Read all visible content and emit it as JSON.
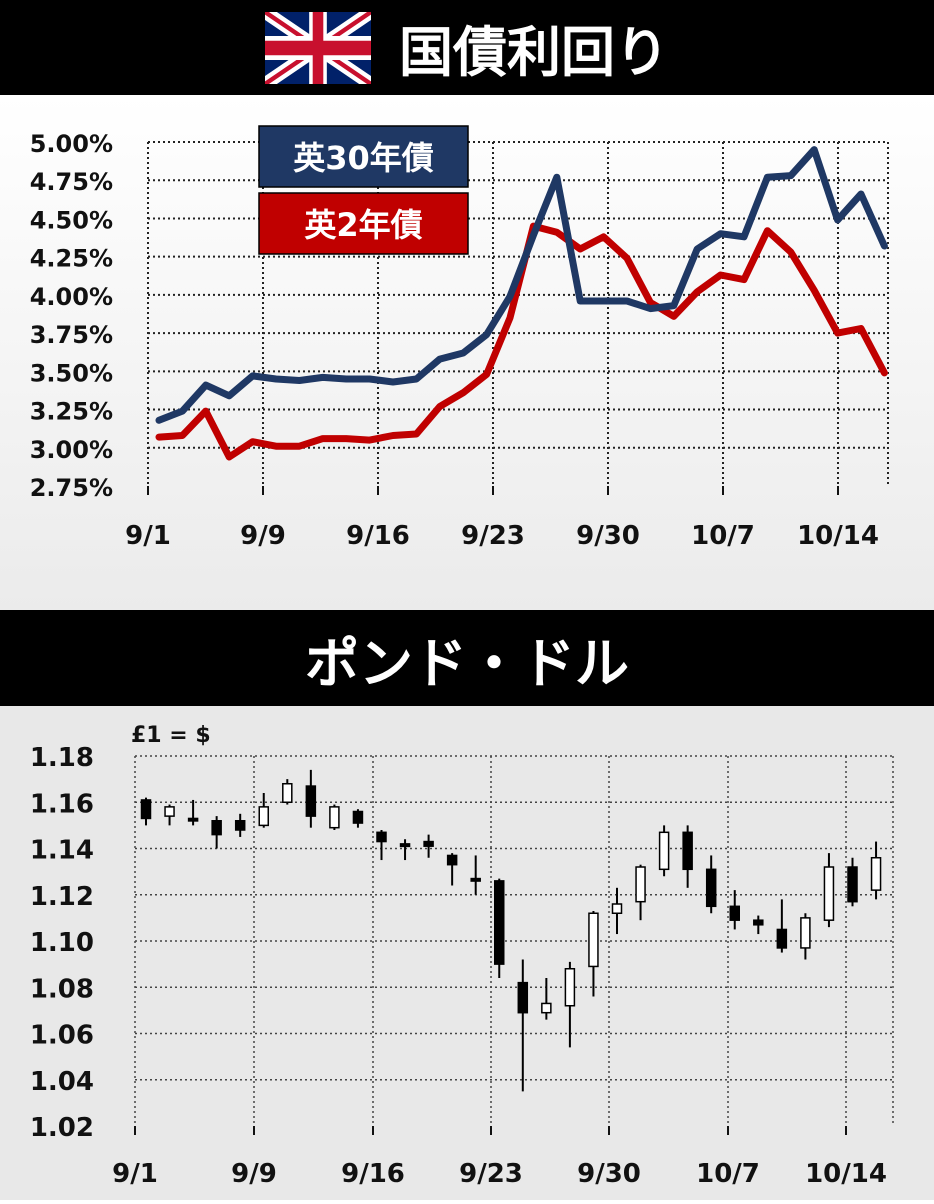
{
  "header1": {
    "title": "国債利回り",
    "flag_icon": "uk-flag-icon"
  },
  "header2": {
    "title": "ポンド・ドル"
  },
  "colors": {
    "series30": "#1f3864",
    "series2": "#c00000"
  },
  "chart_data": [
    {
      "type": "line",
      "ylim": [
        2.75,
        5.0
      ],
      "y_ticks": [
        "2.75%",
        "3.00%",
        "3.25%",
        "3.50%",
        "3.75%",
        "4.00%",
        "4.25%",
        "4.50%",
        "4.75%",
        "5.00%"
      ],
      "x_tick_labels": [
        "9/1",
        "9/9",
        "9/16",
        "9/23",
        "9/30",
        "10/7",
        "10/14"
      ],
      "legend_placement": "top-left",
      "series": [
        {
          "name": "英30年債",
          "values": [
            3.18,
            3.24,
            3.41,
            3.34,
            3.47,
            3.45,
            3.44,
            3.46,
            3.45,
            3.45,
            3.43,
            3.45,
            3.58,
            3.62,
            3.74,
            3.99,
            4.39,
            4.77,
            3.96,
            3.96,
            3.96,
            3.91,
            3.93,
            4.3,
            4.4,
            4.38,
            4.77,
            4.78,
            4.95,
            4.49,
            4.66,
            4.32
          ]
        },
        {
          "name": "英2年債",
          "values": [
            3.07,
            3.08,
            3.24,
            2.94,
            3.04,
            3.01,
            3.01,
            3.06,
            3.06,
            3.05,
            3.08,
            3.09,
            3.27,
            3.36,
            3.48,
            3.85,
            4.45,
            4.41,
            4.3,
            4.38,
            4.24,
            3.95,
            3.86,
            4.02,
            4.13,
            4.1,
            4.42,
            4.28,
            4.03,
            3.75,
            3.78,
            3.49
          ]
        }
      ]
    },
    {
      "type": "candlestick",
      "unit_label": "£1 = $",
      "ylim": [
        1.02,
        1.18
      ],
      "y_ticks": [
        "1.02",
        "1.04",
        "1.06",
        "1.08",
        "1.10",
        "1.12",
        "1.14",
        "1.16",
        "1.18"
      ],
      "x_tick_labels": [
        "9/1",
        "9/9",
        "9/16",
        "9/23",
        "9/30",
        "10/7",
        "10/14"
      ],
      "candles": [
        {
          "open": 1.161,
          "close": 1.153,
          "high": 1.162,
          "low": 1.15
        },
        {
          "open": 1.154,
          "close": 1.158,
          "high": 1.159,
          "low": 1.15
        },
        {
          "open": 1.153,
          "close": 1.152,
          "high": 1.161,
          "low": 1.15
        },
        {
          "open": 1.152,
          "close": 1.146,
          "high": 1.154,
          "low": 1.14
        },
        {
          "open": 1.152,
          "close": 1.148,
          "high": 1.155,
          "low": 1.145
        },
        {
          "open": 1.15,
          "close": 1.158,
          "high": 1.164,
          "low": 1.149
        },
        {
          "open": 1.16,
          "close": 1.168,
          "high": 1.17,
          "low": 1.159
        },
        {
          "open": 1.167,
          "close": 1.154,
          "high": 1.174,
          "low": 1.149
        },
        {
          "open": 1.149,
          "close": 1.158,
          "high": 1.159,
          "low": 1.148
        },
        {
          "open": 1.156,
          "close": 1.151,
          "high": 1.157,
          "low": 1.149
        },
        {
          "open": 1.147,
          "close": 1.143,
          "high": 1.148,
          "low": 1.135
        },
        {
          "open": 1.142,
          "close": 1.141,
          "high": 1.144,
          "low": 1.135
        },
        {
          "open": 1.143,
          "close": 1.141,
          "high": 1.146,
          "low": 1.136
        },
        {
          "open": 1.137,
          "close": 1.133,
          "high": 1.138,
          "low": 1.124
        },
        {
          "open": 1.127,
          "close": 1.126,
          "high": 1.137,
          "low": 1.12
        },
        {
          "open": 1.126,
          "close": 1.09,
          "high": 1.127,
          "low": 1.084
        },
        {
          "open": 1.082,
          "close": 1.069,
          "high": 1.092,
          "low": 1.035
        },
        {
          "open": 1.069,
          "close": 1.073,
          "high": 1.084,
          "low": 1.066
        },
        {
          "open": 1.072,
          "close": 1.088,
          "high": 1.091,
          "low": 1.054
        },
        {
          "open": 1.089,
          "close": 1.112,
          "high": 1.113,
          "low": 1.076
        },
        {
          "open": 1.112,
          "close": 1.116,
          "high": 1.123,
          "low": 1.103
        },
        {
          "open": 1.117,
          "close": 1.132,
          "high": 1.133,
          "low": 1.109
        },
        {
          "open": 1.131,
          "close": 1.147,
          "high": 1.15,
          "low": 1.128
        },
        {
          "open": 1.147,
          "close": 1.131,
          "high": 1.15,
          "low": 1.123
        },
        {
          "open": 1.131,
          "close": 1.115,
          "high": 1.137,
          "low": 1.112
        },
        {
          "open": 1.115,
          "close": 1.109,
          "high": 1.122,
          "low": 1.105
        },
        {
          "open": 1.109,
          "close": 1.107,
          "high": 1.111,
          "low": 1.103
        },
        {
          "open": 1.105,
          "close": 1.097,
          "high": 1.118,
          "low": 1.095
        },
        {
          "open": 1.097,
          "close": 1.11,
          "high": 1.112,
          "low": 1.092
        },
        {
          "open": 1.109,
          "close": 1.132,
          "high": 1.138,
          "low": 1.106
        },
        {
          "open": 1.132,
          "close": 1.117,
          "high": 1.136,
          "low": 1.115
        },
        {
          "open": 1.122,
          "close": 1.136,
          "high": 1.143,
          "low": 1.118
        }
      ]
    }
  ]
}
